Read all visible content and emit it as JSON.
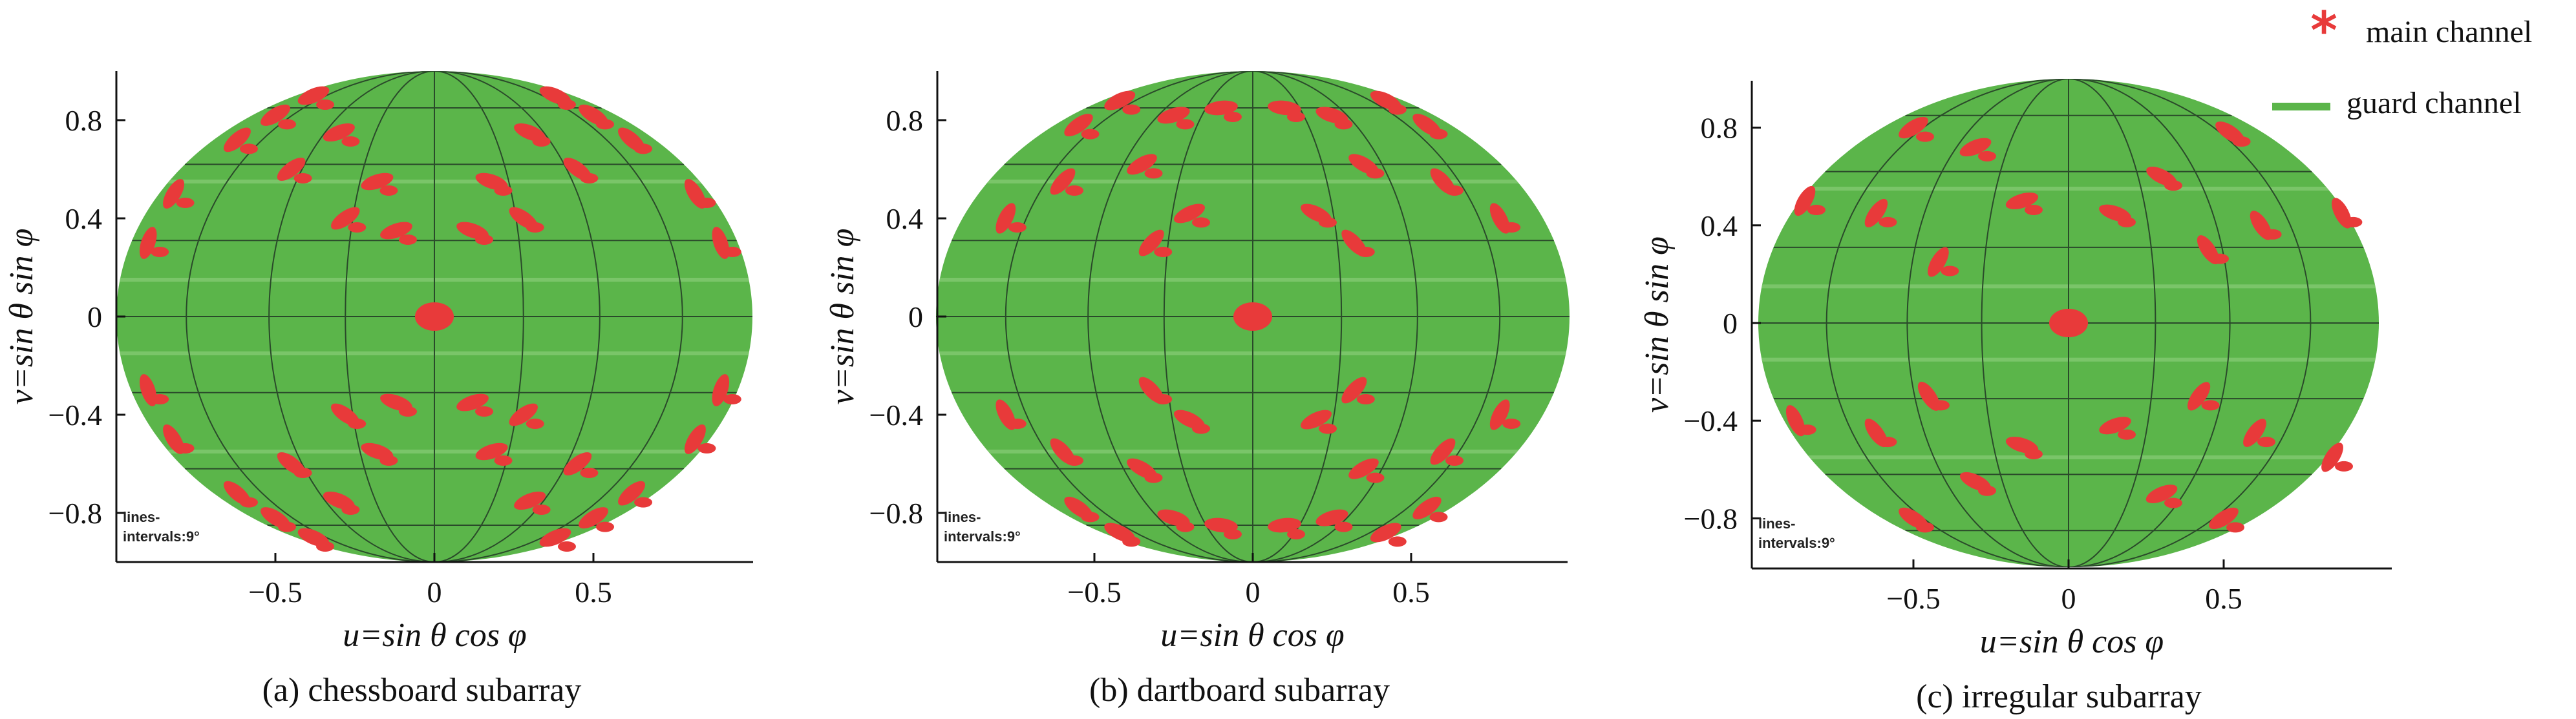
{
  "legend": {
    "main_label": "main channel",
    "guard_label": "guard channel",
    "main_color": "#e83a3a",
    "guard_color": "#5bb54a",
    "main_icon": "asterisk-icon",
    "guard_icon": "line-icon"
  },
  "chart_data": [
    {
      "type": "scatter",
      "caption": "(a) chessboard subarray",
      "xlabel": "u=sin θ cos φ",
      "ylabel": "v=sin θ sin φ",
      "xticks": [
        "−0.5",
        "0",
        "0.5"
      ],
      "xtick_values": [
        -0.5,
        0,
        0.5
      ],
      "yticks": [
        "0.8",
        "0.4",
        "0",
        "−0.4",
        "−0.8"
      ],
      "ytick_values": [
        0.8,
        0.4,
        0,
        -0.4,
        -0.8
      ],
      "xlim": [
        -1,
        1
      ],
      "ylim": [
        -1,
        1
      ],
      "note": [
        "lines-",
        "intervals:9°"
      ],
      "series": [
        {
          "name": "guard channel",
          "region": "unit disk u²+v²≤1"
        },
        {
          "name": "main channel",
          "points": [
            [
              0,
              0
            ],
            [
              -0.62,
              0.72
            ],
            [
              -0.5,
              0.82
            ],
            [
              -0.38,
              0.9
            ],
            [
              -0.3,
              0.75
            ],
            [
              -0.45,
              0.6
            ],
            [
              -0.18,
              0.55
            ],
            [
              -0.28,
              0.4
            ],
            [
              -0.12,
              0.35
            ],
            [
              -0.82,
              0.5
            ],
            [
              -0.9,
              0.3
            ],
            [
              0.62,
              0.72
            ],
            [
              0.5,
              0.82
            ],
            [
              0.38,
              0.9
            ],
            [
              0.3,
              0.75
            ],
            [
              0.45,
              0.6
            ],
            [
              0.18,
              0.55
            ],
            [
              0.28,
              0.4
            ],
            [
              0.12,
              0.35
            ],
            [
              0.82,
              0.5
            ],
            [
              0.9,
              0.3
            ],
            [
              -0.62,
              -0.72
            ],
            [
              -0.5,
              -0.82
            ],
            [
              -0.38,
              -0.9
            ],
            [
              -0.3,
              -0.75
            ],
            [
              -0.45,
              -0.6
            ],
            [
              -0.18,
              -0.55
            ],
            [
              -0.28,
              -0.4
            ],
            [
              -0.12,
              -0.35
            ],
            [
              -0.82,
              -0.5
            ],
            [
              -0.9,
              -0.3
            ],
            [
              0.62,
              -0.72
            ],
            [
              0.5,
              -0.82
            ],
            [
              0.38,
              -0.9
            ],
            [
              0.3,
              -0.75
            ],
            [
              0.45,
              -0.6
            ],
            [
              0.18,
              -0.55
            ],
            [
              0.28,
              -0.4
            ],
            [
              0.12,
              -0.35
            ],
            [
              0.82,
              -0.5
            ],
            [
              0.9,
              -0.3
            ]
          ]
        }
      ]
    },
    {
      "type": "scatter",
      "caption": "(b) dartboard subarray",
      "xlabel": "u=sin θ cos φ",
      "ylabel": "v=sin θ sin φ",
      "xticks": [
        "−0.5",
        "0",
        "0.5"
      ],
      "xtick_values": [
        -0.5,
        0,
        0.5
      ],
      "yticks": [
        "0.8",
        "0.4",
        "0",
        "−0.4",
        "−0.8"
      ],
      "ytick_values": [
        0.8,
        0.4,
        0,
        -0.4,
        -0.8
      ],
      "xlim": [
        -1,
        1
      ],
      "ylim": [
        -1,
        1
      ],
      "note": [
        "lines-",
        "intervals:9°"
      ],
      "series": [
        {
          "name": "guard channel",
          "region": "unit disk u²+v²≤1"
        },
        {
          "name": "main channel",
          "points": [
            [
              0,
              0
            ],
            [
              -0.55,
              0.78
            ],
            [
              -0.42,
              0.88
            ],
            [
              -0.25,
              0.82
            ],
            [
              -0.35,
              0.62
            ],
            [
              -0.6,
              0.55
            ],
            [
              -0.2,
              0.42
            ],
            [
              -0.32,
              0.3
            ],
            [
              -0.78,
              0.4
            ],
            [
              -0.1,
              0.85
            ],
            [
              0.55,
              0.78
            ],
            [
              0.42,
              0.88
            ],
            [
              0.25,
              0.82
            ],
            [
              0.35,
              0.62
            ],
            [
              0.6,
              0.55
            ],
            [
              0.2,
              0.42
            ],
            [
              0.32,
              0.3
            ],
            [
              0.78,
              0.4
            ],
            [
              0.1,
              0.85
            ],
            [
              -0.55,
              -0.78
            ],
            [
              -0.42,
              -0.88
            ],
            [
              -0.25,
              -0.82
            ],
            [
              -0.35,
              -0.62
            ],
            [
              -0.6,
              -0.55
            ],
            [
              -0.2,
              -0.42
            ],
            [
              -0.32,
              -0.3
            ],
            [
              -0.78,
              -0.4
            ],
            [
              -0.1,
              -0.85
            ],
            [
              0.55,
              -0.78
            ],
            [
              0.42,
              -0.88
            ],
            [
              0.25,
              -0.82
            ],
            [
              0.35,
              -0.62
            ],
            [
              0.6,
              -0.55
            ],
            [
              0.2,
              -0.42
            ],
            [
              0.32,
              -0.3
            ],
            [
              0.78,
              -0.4
            ],
            [
              0.1,
              -0.85
            ]
          ]
        }
      ]
    },
    {
      "type": "scatter",
      "caption": "(c) irregular subarray",
      "xlabel": "u=sin θ cos φ",
      "ylabel": "v=sin θ sin φ",
      "xticks": [
        "−0.5",
        "0",
        "0.5"
      ],
      "xtick_values": [
        -0.5,
        0,
        0.5
      ],
      "yticks": [
        "0.8",
        "0.4",
        "0",
        "−0.4",
        "−0.8"
      ],
      "ytick_values": [
        0.8,
        0.4,
        0,
        -0.4,
        -0.8
      ],
      "xlim": [
        -1,
        1
      ],
      "ylim": [
        -1,
        1
      ],
      "note": [
        "lines-",
        "intervals:9°"
      ],
      "series": [
        {
          "name": "guard channel",
          "region": "unit disk u²+v²≤1"
        },
        {
          "name": "main channel",
          "points": [
            [
              0,
              0
            ],
            [
              -0.5,
              0.8
            ],
            [
              -0.3,
              0.72
            ],
            [
              -0.62,
              0.45
            ],
            [
              -0.15,
              0.5
            ],
            [
              -0.42,
              0.25
            ],
            [
              -0.85,
              0.5
            ],
            [
              0.52,
              0.78
            ],
            [
              0.3,
              0.6
            ],
            [
              0.62,
              0.4
            ],
            [
              0.15,
              0.45
            ],
            [
              0.45,
              0.3
            ],
            [
              0.88,
              0.45
            ],
            [
              -0.5,
              -0.8
            ],
            [
              -0.3,
              -0.65
            ],
            [
              -0.62,
              -0.45
            ],
            [
              -0.15,
              -0.5
            ],
            [
              -0.45,
              -0.3
            ],
            [
              -0.88,
              -0.4
            ],
            [
              0.5,
              -0.8
            ],
            [
              0.3,
              -0.7
            ],
            [
              0.6,
              -0.45
            ],
            [
              0.15,
              -0.42
            ],
            [
              0.42,
              -0.3
            ],
            [
              0.85,
              -0.55
            ]
          ]
        }
      ]
    }
  ]
}
